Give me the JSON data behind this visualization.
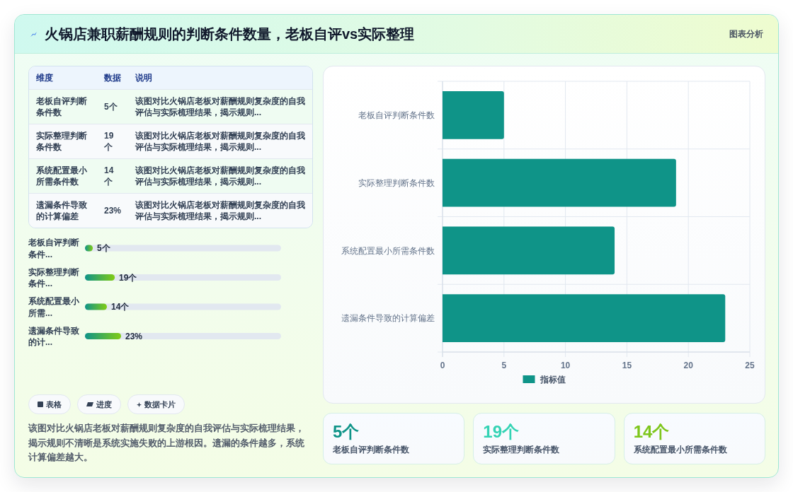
{
  "chart_data": [
    {
      "type": "other",
      "title": "火锅店兼职薪酬规则的判断条件数量，老板自评vs实际整理",
      "annotations": [
        "图表分析"
      ]
    },
    {
      "type": "other",
      "categories": [
        "老板自评判断条件数",
        "实际整理判断条件数",
        "系统配置最小所需条件数",
        "遗漏条件导致的计算偏差"
      ],
      "value_labels": [
        "5个",
        "19个",
        "14个",
        "23%"
      ],
      "annotations": [
        "维度",
        "数据",
        "说明",
        "该图对比火锅店老板对薪酬规则复杂度的自我评估与实际梳理结果，揭示规则...",
        "该图对比火锅店老板对薪酬规则复杂度的自我评估与实际梳理结果，揭示规则...",
        "该图对比火锅店老板对薪酬规则复杂度的自我评估与实际梳理结果，揭示规则...",
        "该图对比火锅店老板对薪酬规则复杂度的自我评估与实际梳理结果，揭示规则..."
      ]
    },
    {
      "type": "bar",
      "orientation": "horizontal",
      "categories": [
        "老板自评判断条件...",
        "实际整理判断条件...",
        "系统配置最小所需...",
        "遗漏条件导致的计..."
      ],
      "values": [
        5,
        19,
        14,
        23
      ],
      "value_labels": [
        "5个",
        "19个",
        "14个",
        "23%"
      ],
      "color": "#0f9488"
    },
    {
      "type": "other",
      "categories": [
        "表格",
        "进度",
        "数据卡片"
      ],
      "annotations": [
        "该图对比火锅店老板对薪酬规则复杂度的自我评估与实际梳理结果，揭示规则不清晰是系统实施失败的上游根因。遗漏的条件越多，系统计算偏差越大。"
      ]
    },
    {
      "type": "bar",
      "orientation": "horizontal",
      "categories": [
        "老板自评判断条件数",
        "实际整理判断条件数",
        "系统配置最小所需条件数",
        "遗漏条件导致的计算偏差"
      ],
      "series": [
        {
          "name": "指标值",
          "color": "#0f9488",
          "values": [
            5,
            19,
            14,
            23
          ]
        }
      ],
      "xlim": [
        0,
        25
      ],
      "xticks": [
        0,
        5,
        10,
        15,
        20,
        25
      ],
      "grid": true,
      "legend": "bottom"
    },
    {
      "type": "other",
      "categories": [
        "老板自评判断条件数",
        "实际整理判断条件数",
        "系统配置最小所需条件数"
      ],
      "value_labels": [
        "5个",
        "19个",
        "14个"
      ]
    }
  ]
}
